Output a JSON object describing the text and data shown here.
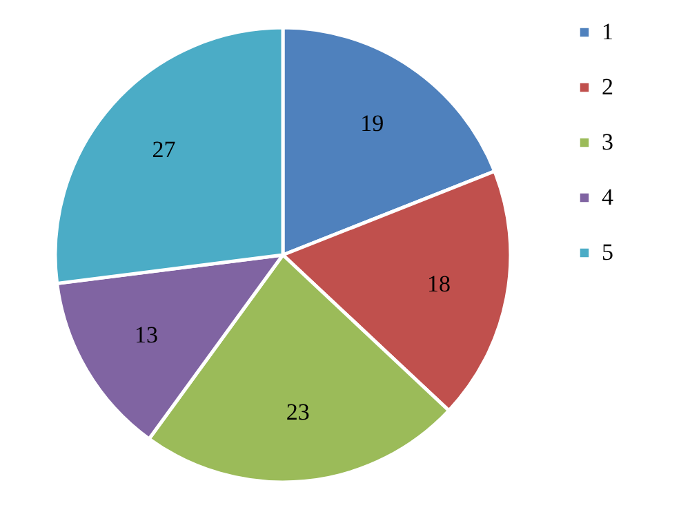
{
  "chart_data": {
    "type": "pie",
    "categories": [
      "1",
      "2",
      "3",
      "4",
      "5"
    ],
    "values": [
      19,
      18,
      23,
      13,
      27
    ],
    "colors": [
      "#4f81bd",
      "#c0504d",
      "#9bbb59",
      "#8064a2",
      "#4bacc6"
    ],
    "data_labels": true,
    "legend": "right"
  }
}
